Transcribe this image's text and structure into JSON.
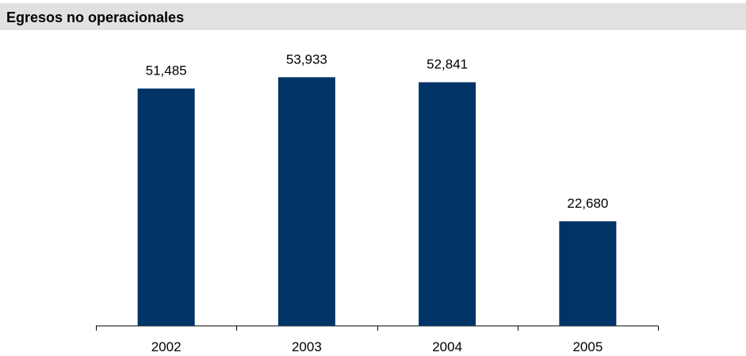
{
  "chart_data": {
    "type": "bar",
    "title": "Egresos no operacionales",
    "categories": [
      "2002",
      "2003",
      "2004",
      "2005"
    ],
    "values": [
      51485,
      53933,
      52841,
      22680
    ],
    "value_labels": [
      "51,485",
      "53,933",
      "52,841",
      "22,680"
    ],
    "xlabel": "",
    "ylabel": "",
    "ylim": [
      0,
      60000
    ],
    "grid": false,
    "legend": "none",
    "bar_color": "#003366"
  }
}
